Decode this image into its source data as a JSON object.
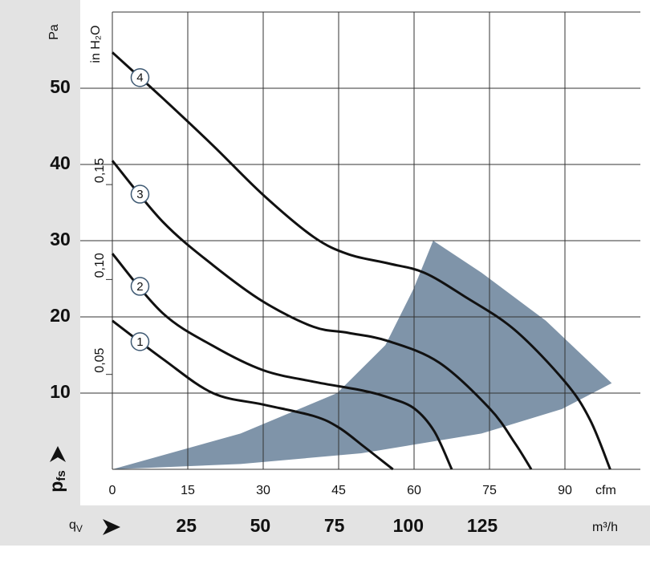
{
  "chart_data": {
    "type": "line",
    "y_label": "Pa",
    "y2_label": "in H₂O",
    "x_label": "cfm",
    "x2_label": "m³/h",
    "y_symbol": "p",
    "y_symbol_sub": "fs",
    "x_symbol": "q",
    "x_symbol_sub": "V",
    "grid": true,
    "xlim": [
      0,
      105
    ],
    "xticks": [
      0,
      15,
      30,
      45,
      60,
      75,
      90
    ],
    "x2lim": [
      0,
      178.4
    ],
    "x2ticks": [
      25,
      50,
      75,
      100,
      125
    ],
    "ylim": [
      0,
      60
    ],
    "yticks": [
      10,
      20,
      30,
      40,
      50
    ],
    "y2lim": [
      0,
      0.2409
    ],
    "y2ticks": [
      {
        "value": 0.05,
        "label": "0,05"
      },
      {
        "value": 0.1,
        "label": "0,10"
      },
      {
        "value": 0.15,
        "label": "0,15"
      }
    ],
    "region": {
      "color": "#7f94a9",
      "x": [
        0,
        25.5,
        44.7,
        54.3,
        59.9,
        63.8,
        73.4,
        86.2,
        99.3,
        89.4,
        73.4,
        49.5,
        25.5,
        0
      ],
      "values": [
        0,
        4.7,
        10,
        16.3,
        23.7,
        30,
        25.8,
        19.5,
        11.3,
        7.9,
        4.7,
        2.1,
        0.7,
        0
      ]
    },
    "series": [
      {
        "name": "1",
        "color": "#111111",
        "x": [
          0,
          10,
          20,
          30,
          40,
          45,
          50,
          55.8
        ],
        "values": [
          19.5,
          14.5,
          10,
          8.5,
          7,
          5.5,
          3,
          0
        ]
      },
      {
        "name": "2",
        "color": "#111111",
        "x": [
          0,
          10,
          20,
          30,
          40,
          50,
          55,
          60,
          64,
          67.5
        ],
        "values": [
          28.3,
          20.5,
          16.2,
          13,
          11.5,
          10.3,
          9.4,
          8,
          5,
          0
        ]
      },
      {
        "name": "3",
        "color": "#111111",
        "x": [
          0,
          10,
          20,
          30,
          40,
          47,
          55,
          65,
          75,
          80,
          83.3
        ],
        "values": [
          40.5,
          32.5,
          26.8,
          22,
          18.7,
          17.9,
          16.8,
          14,
          8,
          3.5,
          0
        ]
      },
      {
        "name": "4",
        "color": "#111111",
        "x": [
          0,
          10,
          20,
          30,
          40,
          47,
          55,
          62,
          70,
          80,
          90,
          95,
          99
        ],
        "values": [
          54.7,
          48.7,
          42.5,
          36,
          30.5,
          28.2,
          27,
          25.8,
          22.7,
          18.3,
          11.5,
          6.5,
          0
        ]
      }
    ]
  }
}
